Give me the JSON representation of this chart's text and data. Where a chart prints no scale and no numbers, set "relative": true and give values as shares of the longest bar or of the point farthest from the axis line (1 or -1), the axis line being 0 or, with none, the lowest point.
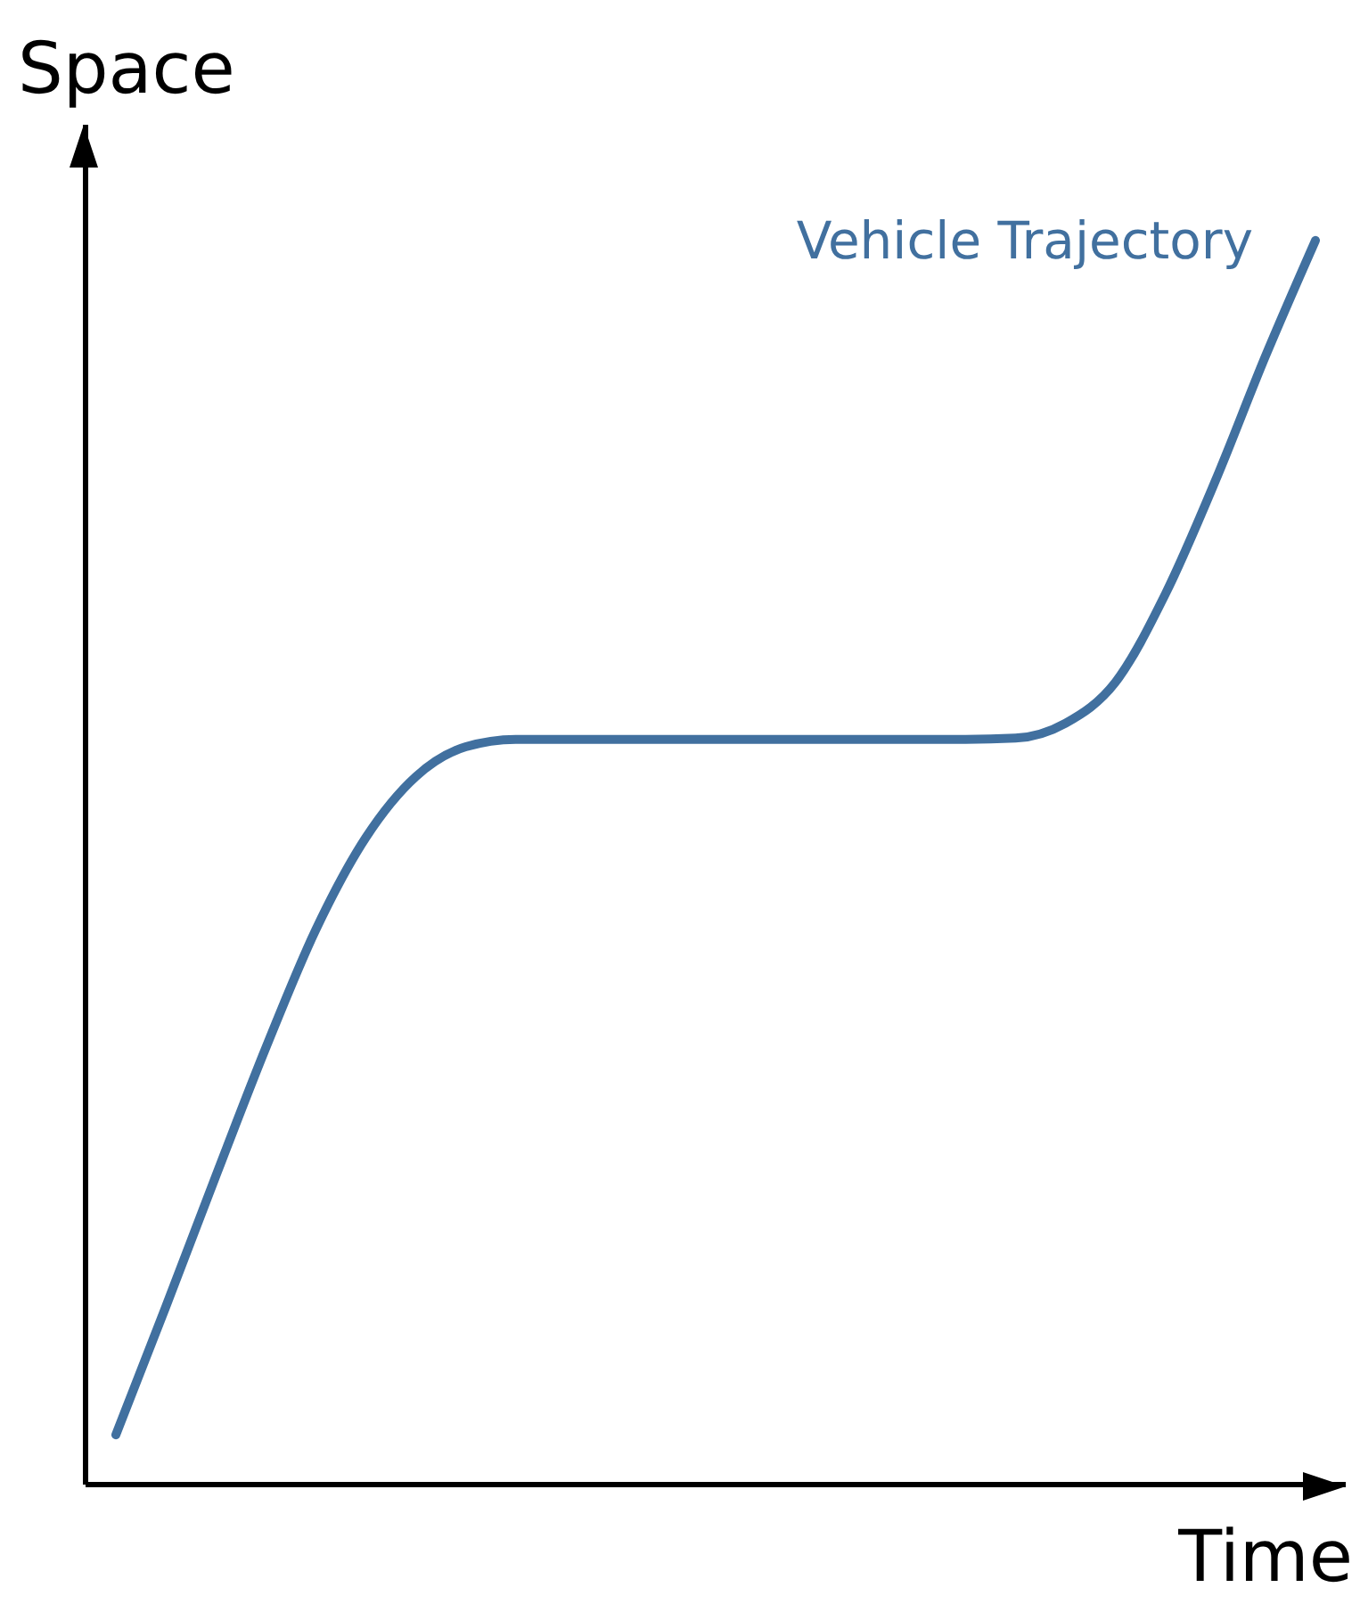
{
  "chart_data": {
    "type": "line",
    "xlabel": "Time",
    "ylabel": "Space",
    "relative": true,
    "categories": [
      null,
      null,
      null,
      null,
      null,
      null,
      null,
      null,
      null,
      null,
      null,
      null,
      null,
      null,
      null,
      null,
      null,
      null,
      null,
      null,
      null,
      null,
      null,
      null,
      null
    ],
    "series": [
      {
        "name": "Vehicle Trajectory",
        "color": "#41709f",
        "values": [
          0.04,
          0.143,
          0.248,
          0.351,
          0.446,
          0.52,
          0.569,
          0.593,
          0.599,
          0.599,
          0.599,
          0.599,
          0.599,
          0.599,
          0.599,
          0.599,
          0.599,
          0.599,
          0.6,
          0.612,
          0.645,
          0.716,
          0.807,
          0.907,
          1
        ]
      }
    ]
  }
}
